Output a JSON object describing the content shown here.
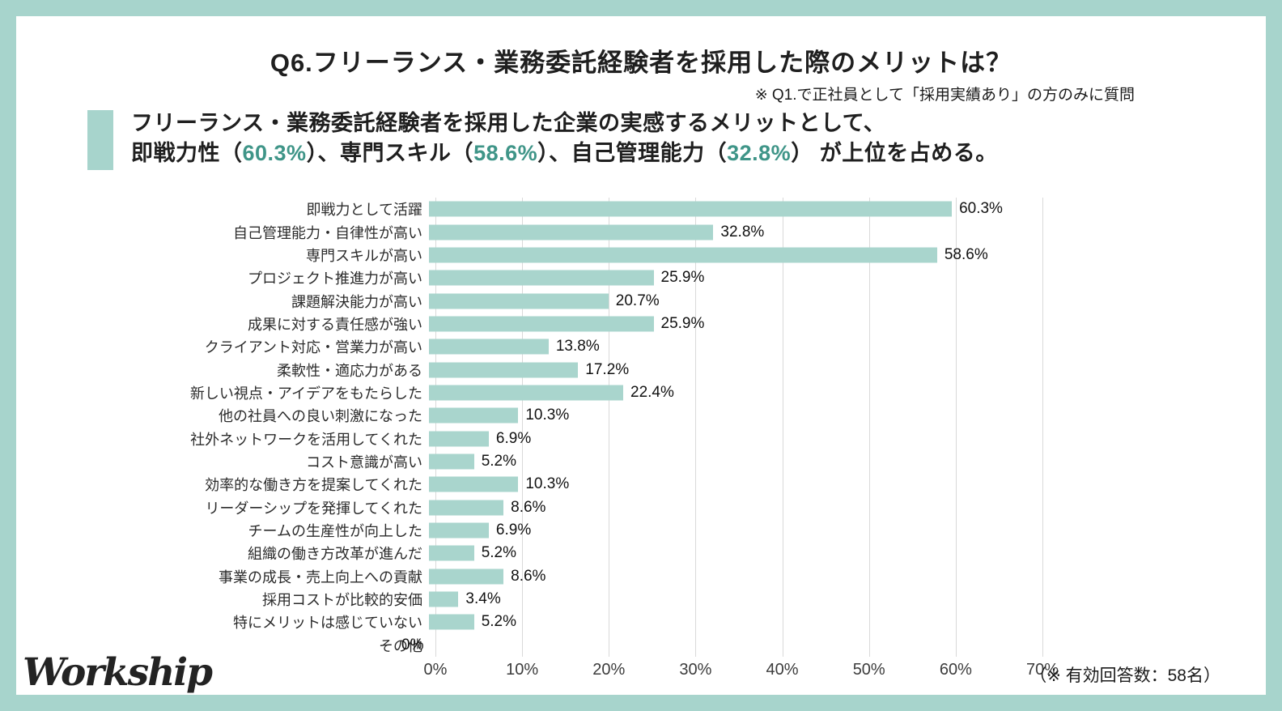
{
  "header": {
    "title": "Q6.フリーランス・業務委託経験者を採用した際のメリットは？",
    "note": "※ Q1.で正社員として「採用実績あり」の方のみに質問"
  },
  "summary": {
    "line1": "フリーランス・業務委託経験者を採用した企業の実感するメリットとして、",
    "line2": {
      "seg1": "即戦力性（",
      "pct1": "60.3%",
      "seg2": "）、専門スキル（",
      "pct2": "58.6%",
      "seg3": "）、自己管理能力（",
      "pct3": "32.8%",
      "seg4": "） が上位を占める。"
    }
  },
  "chart_data": {
    "type": "bar",
    "orientation": "horizontal",
    "title": "",
    "xlabel": "",
    "ylabel": "",
    "xlim": [
      0,
      70
    ],
    "grid": true,
    "bar_color": "#a9d5cd",
    "categories": [
      "即戦力として活躍",
      "自己管理能力・自律性が高い",
      "専門スキルが高い",
      "プロジェクト推進力が高い",
      "課題解決能力が高い",
      "成果に対する責任感が強い",
      "クライアント対応・営業力が高い",
      "柔軟性・適応力がある",
      "新しい視点・アイデアをもたらした",
      "他の社員への良い刺激になった",
      "社外ネットワークを活用してくれた",
      "コスト意識が高い",
      "効率的な働き方を提案してくれた",
      "リーダーシップを発揮してくれた",
      "チームの生産性が向上した",
      "組織の働き方改革が進んだ",
      "事業の成長・売上向上への貢献",
      "採用コストが比較的安価",
      "特にメリットは感じていない",
      "その他"
    ],
    "values": [
      60.3,
      32.8,
      58.6,
      25.9,
      20.7,
      25.9,
      13.8,
      17.2,
      22.4,
      10.3,
      6.9,
      5.2,
      10.3,
      8.6,
      6.9,
      5.2,
      8.6,
      3.4,
      5.2,
      0
    ],
    "value_labels": [
      "60.3%",
      "32.8%",
      "58.6%",
      "25.9%",
      "20.7%",
      "25.9%",
      "13.8%",
      "17.2%",
      "22.4%",
      "10.3%",
      "6.9%",
      "5.2%",
      "10.3%",
      "8.6%",
      "6.9%",
      "5.2%",
      "8.6%",
      "3.4%",
      "5.2%",
      "0%"
    ],
    "x_ticks": [
      "0%",
      "10%",
      "20%",
      "30%",
      "40%",
      "50%",
      "60%",
      "70%"
    ]
  },
  "footer": {
    "logo": "Workship",
    "sample_note": "（※ 有効回答数：58名）"
  },
  "colors": {
    "frame_teal": "#a7d4cc",
    "bar_teal": "#a9d5cd",
    "highlight_green": "#3f9588"
  }
}
